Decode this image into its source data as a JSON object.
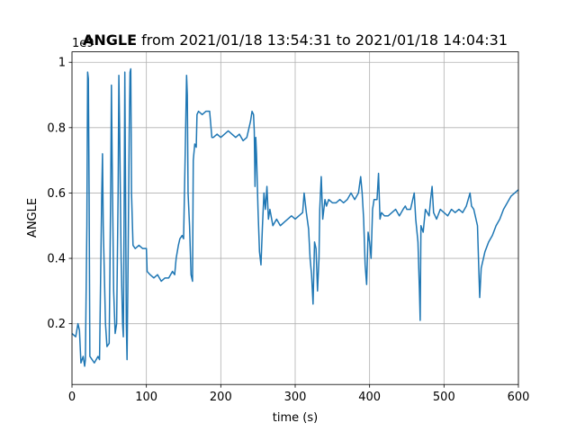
{
  "chart_data": {
    "type": "line",
    "title_bold": "ANGLE",
    "title": "from 2021/01/18 13:54:31 to 2021/01/18 14:04:31",
    "x_label": "time (s)",
    "y_label": "ANGLE",
    "y_offset_label": "1e9",
    "color": "#1f77b4",
    "grid": true,
    "xlim": [
      0,
      600
    ],
    "xticks": [
      0,
      100,
      200,
      300,
      400,
      500,
      600
    ],
    "ylim": [
      0.014,
      1.032
    ],
    "yticks": [
      0.2,
      0.4,
      0.6,
      0.8,
      1.0
    ],
    "x": [
      0,
      5,
      8,
      10,
      12,
      15,
      17,
      18,
      20,
      21,
      22,
      23,
      24,
      27,
      30,
      35,
      37,
      40,
      41,
      42,
      45,
      47,
      50,
      52,
      53,
      54,
      56,
      58,
      60,
      62,
      63,
      64,
      66,
      68,
      69,
      70,
      71,
      72,
      73,
      74,
      75,
      77,
      78,
      79,
      80,
      82,
      85,
      90,
      95,
      100,
      101,
      105,
      110,
      115,
      120,
      125,
      130,
      135,
      138,
      140,
      143,
      145,
      148,
      150,
      152,
      154,
      155,
      156,
      158,
      160,
      162,
      163,
      165,
      167,
      168,
      170,
      175,
      180,
      185,
      188,
      190,
      195,
      200,
      205,
      210,
      215,
      220,
      225,
      230,
      235,
      238,
      240,
      242,
      244,
      245,
      246,
      247,
      248,
      250,
      252,
      254,
      256,
      258,
      260,
      262,
      264,
      266,
      270,
      275,
      280,
      285,
      290,
      295,
      300,
      305,
      310,
      312,
      315,
      318,
      320,
      322,
      324,
      326,
      328,
      330,
      332,
      333,
      335,
      337,
      340,
      342,
      345,
      350,
      355,
      360,
      365,
      370,
      375,
      380,
      385,
      388,
      390,
      392,
      394,
      396,
      398,
      400,
      402,
      404,
      406,
      410,
      412,
      414,
      416,
      420,
      425,
      430,
      435,
      440,
      445,
      448,
      450,
      455,
      460,
      462,
      465,
      467,
      468,
      469,
      472,
      475,
      480,
      482,
      484,
      486,
      490,
      495,
      500,
      505,
      510,
      515,
      520,
      525,
      530,
      535,
      537,
      540,
      545,
      547,
      548,
      550,
      555,
      560,
      565,
      570,
      575,
      580,
      585,
      590,
      595,
      600
    ],
    "values": [
      0.17,
      0.16,
      0.2,
      0.18,
      0.08,
      0.1,
      0.07,
      0.09,
      0.5,
      0.97,
      0.95,
      0.6,
      0.1,
      0.09,
      0.08,
      0.1,
      0.09,
      0.6,
      0.72,
      0.5,
      0.2,
      0.13,
      0.14,
      0.6,
      0.93,
      0.7,
      0.3,
      0.17,
      0.2,
      0.6,
      0.96,
      0.8,
      0.4,
      0.2,
      0.16,
      0.5,
      0.97,
      0.6,
      0.2,
      0.09,
      0.3,
      0.8,
      0.97,
      0.98,
      0.6,
      0.44,
      0.43,
      0.44,
      0.43,
      0.43,
      0.36,
      0.35,
      0.34,
      0.35,
      0.33,
      0.34,
      0.34,
      0.36,
      0.35,
      0.4,
      0.44,
      0.46,
      0.47,
      0.46,
      0.7,
      0.96,
      0.9,
      0.6,
      0.5,
      0.35,
      0.33,
      0.7,
      0.75,
      0.74,
      0.84,
      0.85,
      0.84,
      0.85,
      0.85,
      0.77,
      0.77,
      0.78,
      0.77,
      0.78,
      0.79,
      0.78,
      0.77,
      0.78,
      0.76,
      0.77,
      0.8,
      0.82,
      0.85,
      0.84,
      0.79,
      0.62,
      0.77,
      0.72,
      0.55,
      0.42,
      0.38,
      0.5,
      0.6,
      0.55,
      0.62,
      0.52,
      0.55,
      0.5,
      0.52,
      0.5,
      0.51,
      0.52,
      0.53,
      0.52,
      0.53,
      0.54,
      0.6,
      0.54,
      0.49,
      0.4,
      0.35,
      0.26,
      0.45,
      0.43,
      0.3,
      0.4,
      0.55,
      0.65,
      0.52,
      0.58,
      0.56,
      0.58,
      0.57,
      0.57,
      0.58,
      0.57,
      0.58,
      0.6,
      0.58,
      0.6,
      0.65,
      0.6,
      0.52,
      0.38,
      0.32,
      0.48,
      0.45,
      0.4,
      0.55,
      0.58,
      0.58,
      0.66,
      0.52,
      0.54,
      0.53,
      0.53,
      0.54,
      0.55,
      0.53,
      0.55,
      0.56,
      0.55,
      0.55,
      0.6,
      0.52,
      0.45,
      0.3,
      0.21,
      0.5,
      0.48,
      0.55,
      0.53,
      0.58,
      0.62,
      0.54,
      0.52,
      0.55,
      0.54,
      0.53,
      0.55,
      0.54,
      0.55,
      0.54,
      0.56,
      0.6,
      0.56,
      0.55,
      0.5,
      0.35,
      0.28,
      0.37,
      0.42,
      0.45,
      0.47,
      0.5,
      0.52,
      0.55,
      0.57,
      0.59,
      0.6,
      0.61
    ]
  }
}
